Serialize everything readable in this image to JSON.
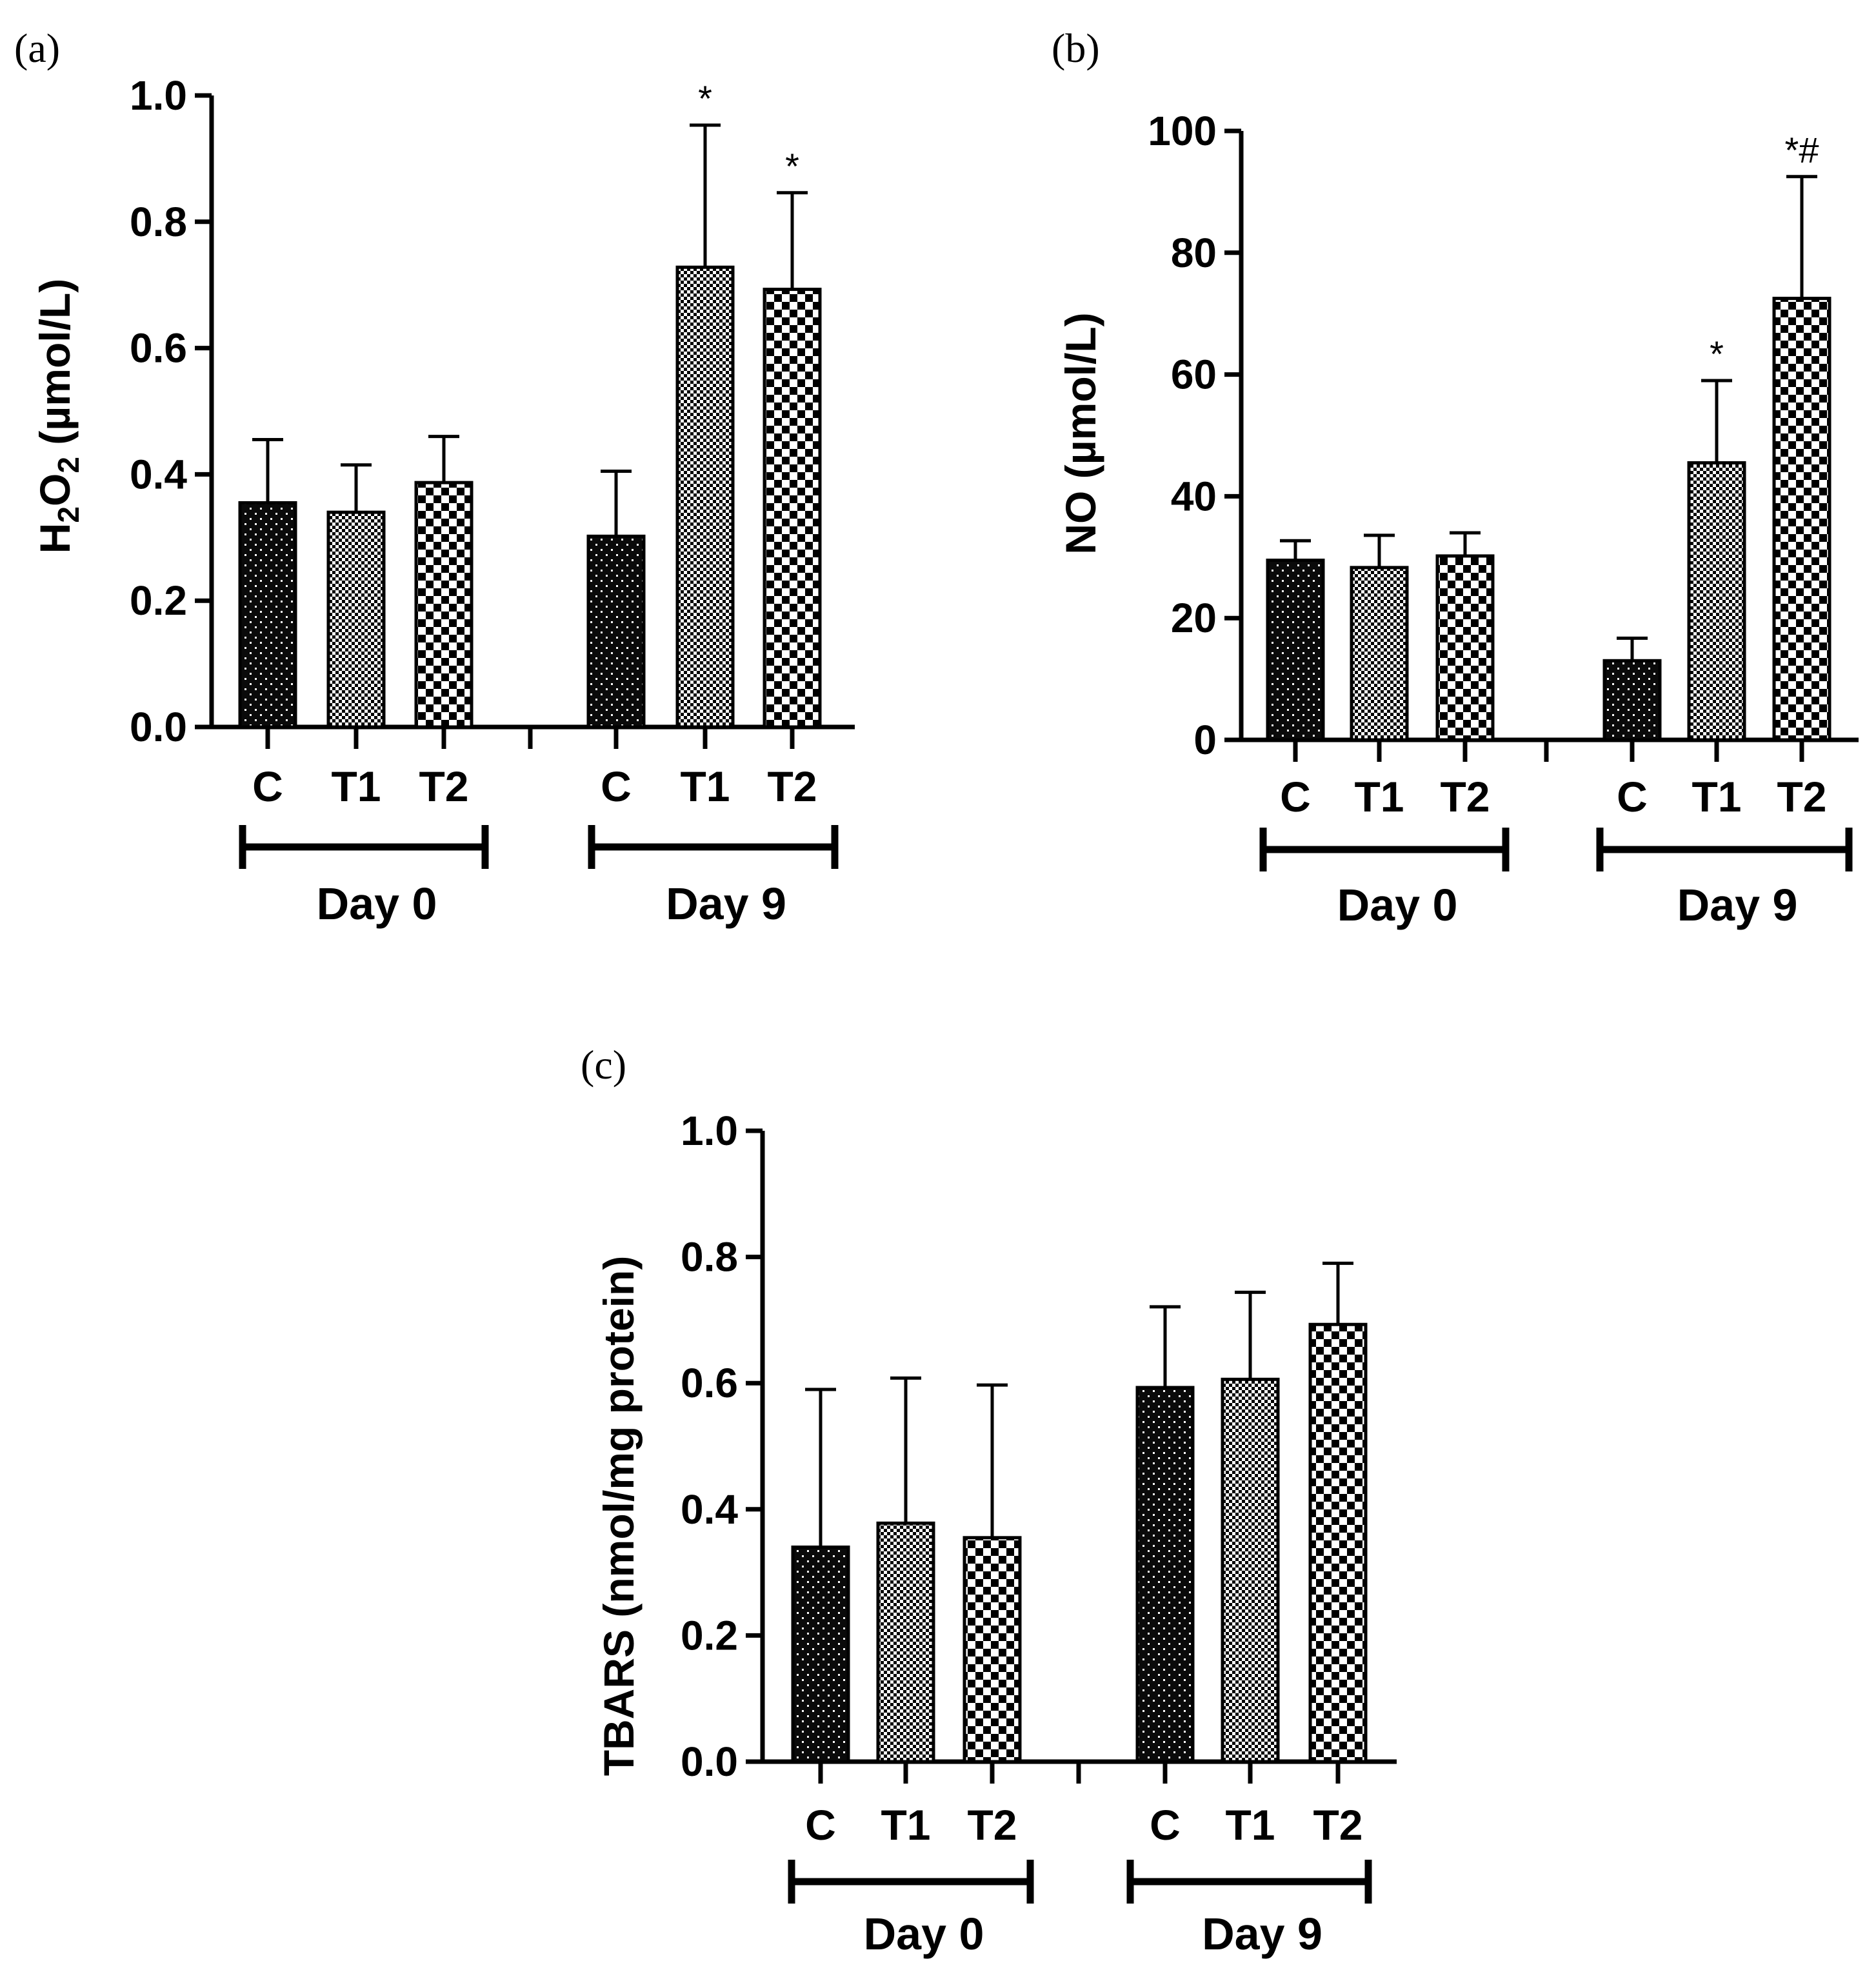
{
  "figure": {
    "panels": [
      "(a)",
      "(b)",
      "(c)"
    ]
  },
  "chart_data": [
    {
      "id": "a",
      "panel_label": "(a)",
      "type": "bar",
      "ylabel_main": "H",
      "ylabel_sub1": "2",
      "ylabel_mid": "O",
      "ylabel_sub2": "2",
      "ylabel_rest": " (µmol/L)",
      "ylim": [
        0,
        1.0
      ],
      "yticks": [
        "0.0",
        "0.2",
        "0.4",
        "0.6",
        "0.8",
        "1.0"
      ],
      "ytick_values": [
        0,
        0.2,
        0.4,
        0.6,
        0.8,
        1.0
      ],
      "groups": [
        {
          "name": "Day 0",
          "bars": [
            {
              "label": "C",
              "value": 0.355,
              "error": 0.1,
              "pattern": "dark",
              "annotation": ""
            },
            {
              "label": "T1",
              "value": 0.34,
              "error": 0.075,
              "pattern": "fine",
              "annotation": ""
            },
            {
              "label": "T2",
              "value": 0.387,
              "error": 0.073,
              "pattern": "checker",
              "annotation": ""
            }
          ]
        },
        {
          "name": "Day 9",
          "bars": [
            {
              "label": "C",
              "value": 0.302,
              "error": 0.103,
              "pattern": "dark",
              "annotation": ""
            },
            {
              "label": "T1",
              "value": 0.728,
              "error": 0.225,
              "pattern": "fine",
              "annotation": "*"
            },
            {
              "label": "T2",
              "value": 0.693,
              "error": 0.153,
              "pattern": "checker",
              "annotation": "*"
            }
          ]
        }
      ]
    },
    {
      "id": "b",
      "panel_label": "(b)",
      "type": "bar",
      "ylabel": "NO (µmol/L)",
      "ylim": [
        0,
        100
      ],
      "yticks": [
        "0",
        "20",
        "40",
        "60",
        "80",
        "100"
      ],
      "ytick_values": [
        0,
        20,
        40,
        60,
        80,
        100
      ],
      "groups": [
        {
          "name": "Day 0",
          "bars": [
            {
              "label": "C",
              "value": 29.5,
              "error": 3.2,
              "pattern": "dark",
              "annotation": ""
            },
            {
              "label": "T1",
              "value": 28.3,
              "error": 5.3,
              "pattern": "fine",
              "annotation": ""
            },
            {
              "label": "T2",
              "value": 30.2,
              "error": 3.8,
              "pattern": "checker",
              "annotation": ""
            }
          ]
        },
        {
          "name": "Day 9",
          "bars": [
            {
              "label": "C",
              "value": 13.0,
              "error": 3.7,
              "pattern": "dark",
              "annotation": ""
            },
            {
              "label": "T1",
              "value": 45.5,
              "error": 13.5,
              "pattern": "fine",
              "annotation": "*"
            },
            {
              "label": "T2",
              "value": 72.5,
              "error": 20.0,
              "pattern": "checker",
              "annotation": "*#"
            }
          ]
        }
      ]
    },
    {
      "id": "c",
      "panel_label": "(c)",
      "type": "bar",
      "ylabel": "TBARS (nmol/mg protein)",
      "ylim": [
        0,
        1.0
      ],
      "yticks": [
        "0.0",
        "0.2",
        "0.4",
        "0.6",
        "0.8",
        "1.0"
      ],
      "ytick_values": [
        0,
        0.2,
        0.4,
        0.6,
        0.8,
        1.0
      ],
      "groups": [
        {
          "name": "Day 0",
          "bars": [
            {
              "label": "C",
              "value": 0.34,
              "error": 0.25,
              "pattern": "dark",
              "annotation": ""
            },
            {
              "label": "T1",
              "value": 0.378,
              "error": 0.23,
              "pattern": "fine",
              "annotation": ""
            },
            {
              "label": "T2",
              "value": 0.355,
              "error": 0.242,
              "pattern": "checker",
              "annotation": ""
            }
          ]
        },
        {
          "name": "Day 9",
          "bars": [
            {
              "label": "C",
              "value": 0.593,
              "error": 0.128,
              "pattern": "dark",
              "annotation": ""
            },
            {
              "label": "T1",
              "value": 0.606,
              "error": 0.138,
              "pattern": "fine",
              "annotation": ""
            },
            {
              "label": "T2",
              "value": 0.693,
              "error": 0.097,
              "pattern": "checker",
              "annotation": ""
            }
          ]
        }
      ]
    }
  ]
}
